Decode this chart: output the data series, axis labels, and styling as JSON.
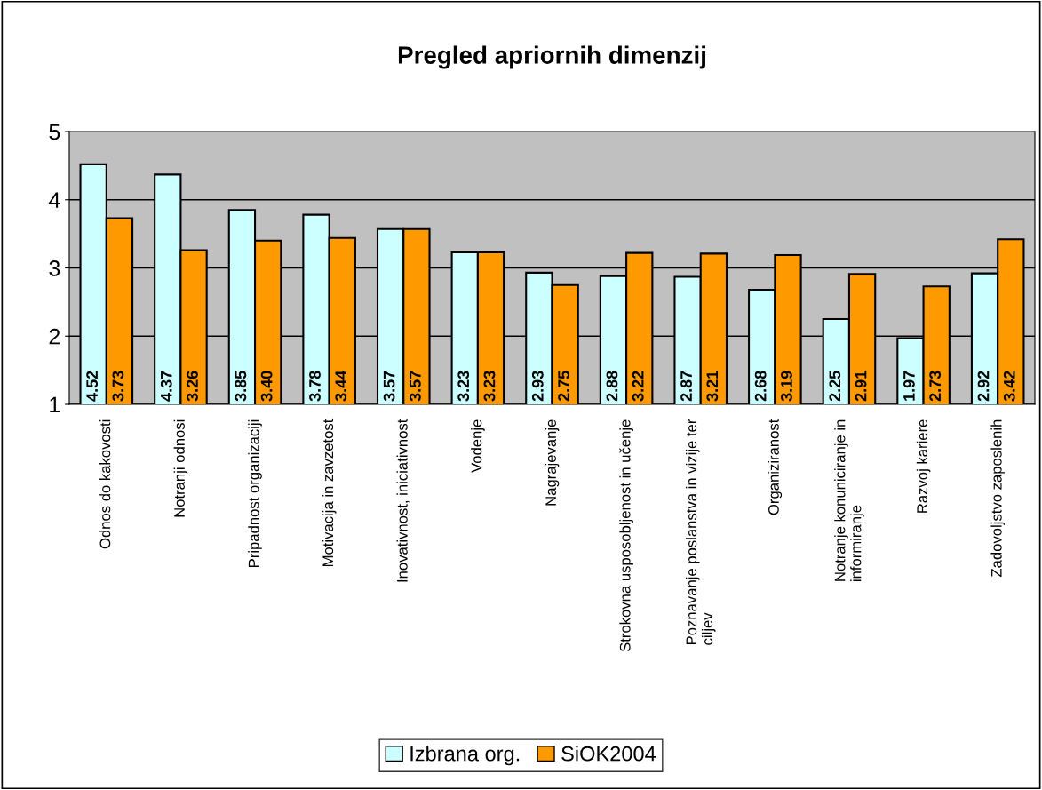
{
  "chart_data": {
    "type": "bar",
    "title": "Pregled apriornih dimenzij",
    "categories": [
      "Odnos do kakovosti",
      "Notranji odnosi",
      "Pripadnost organizaciji",
      "Motivacija in zavzetost",
      "Inovativnost, iniciativnost",
      "Vodenje",
      "Nagrajevanje",
      "Strokovna usposobljenost in učenje",
      "Poznavanje poslanstva in vizije ter\nciljev",
      "Organiziranost",
      "Notranje konuniciranje in\ninformiranje",
      "Razvoj kariere",
      "Zadovoljstvo zaposlenih"
    ],
    "series": [
      {
        "name": "Izbrana org.",
        "color": "#ccffff",
        "values": [
          4.52,
          4.37,
          3.85,
          3.78,
          3.57,
          3.23,
          2.93,
          2.88,
          2.87,
          2.68,
          2.25,
          1.97,
          2.92
        ],
        "value_labels": [
          "4.52",
          "4.37",
          "3.85",
          "3.78",
          "3.57",
          "3.23",
          "2.93",
          "2.88",
          "2.87",
          "2.68",
          "2.25",
          "1.97",
          "2.92"
        ]
      },
      {
        "name": "SiOK2004",
        "color": "#ff9900",
        "values": [
          3.73,
          3.26,
          3.4,
          3.44,
          3.57,
          3.23,
          2.75,
          3.22,
          3.21,
          3.19,
          2.91,
          2.73,
          3.42
        ],
        "value_labels": [
          "3.73",
          "3.26",
          "3.40",
          "3.44",
          "3.57",
          "3.23",
          "2.75",
          "3.22",
          "3.21",
          "3.19",
          "2.91",
          "2.73",
          "3.42"
        ]
      }
    ],
    "ylim": [
      1,
      5
    ],
    "yticks": [
      1,
      2,
      3,
      4,
      5
    ],
    "grid": "y",
    "legend": "bottom"
  }
}
